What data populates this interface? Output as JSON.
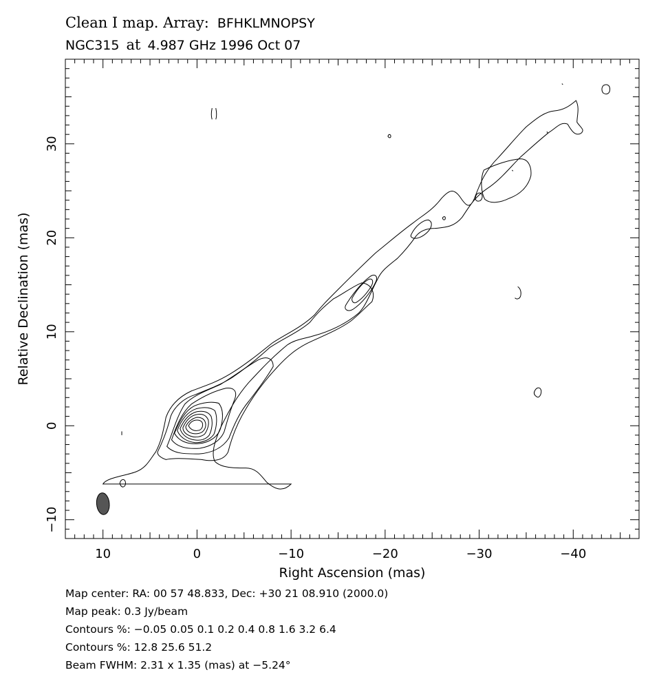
{
  "chart_data": {
    "type": "contour",
    "title_line1_left": "Clean I map.  Array:",
    "title_line1_right": "BFHKLMNOPSY",
    "title_line2_source": "NGC315",
    "title_line2_at": "at",
    "title_line2_rest": "4.987 GHz 1996 Oct 07",
    "xlabel": "Right Ascension  (mas)",
    "ylabel": "Relative Declination  (mas)",
    "xlim": [
      14,
      -47
    ],
    "ylim": [
      -12,
      39
    ],
    "x_ticks": [
      10,
      0,
      -10,
      -20,
      -30,
      -40
    ],
    "x_tick_labels": [
      "10",
      "0",
      "−10",
      "−20",
      "−30",
      "−40"
    ],
    "y_ticks": [
      -10,
      0,
      10,
      20,
      30
    ],
    "y_tick_labels": [
      "−10",
      "0",
      "10",
      "20",
      "30"
    ],
    "beam": {
      "center": [
        10,
        -8.3
      ],
      "major_mas": 2.31,
      "minor_mas": 1.35,
      "pa_deg": -5.24,
      "fill": "#555555"
    },
    "contour_levels_percent": [
      -0.05,
      0.05,
      0.1,
      0.2,
      0.4,
      0.8,
      1.6,
      3.2,
      6.4,
      12.8,
      25.6,
      51.2
    ],
    "map_peak_jy_per_beam": 0.3,
    "footer": [
      "Map center:  RA: 00 57 48.833,  Dec: +30 21 08.910 (2000.0)",
      "Map peak: 0.3 Jy/beam",
      "Contours %: −0.05 0.05 0.1 0.2 0.4 0.8 1.6 3.2 6.4",
      "Contours %: 12.8 25.6 51.2",
      "Beam FWHM: 2.31 x 1.35 (mas) at −5.24°"
    ],
    "line_color": "#000000"
  }
}
